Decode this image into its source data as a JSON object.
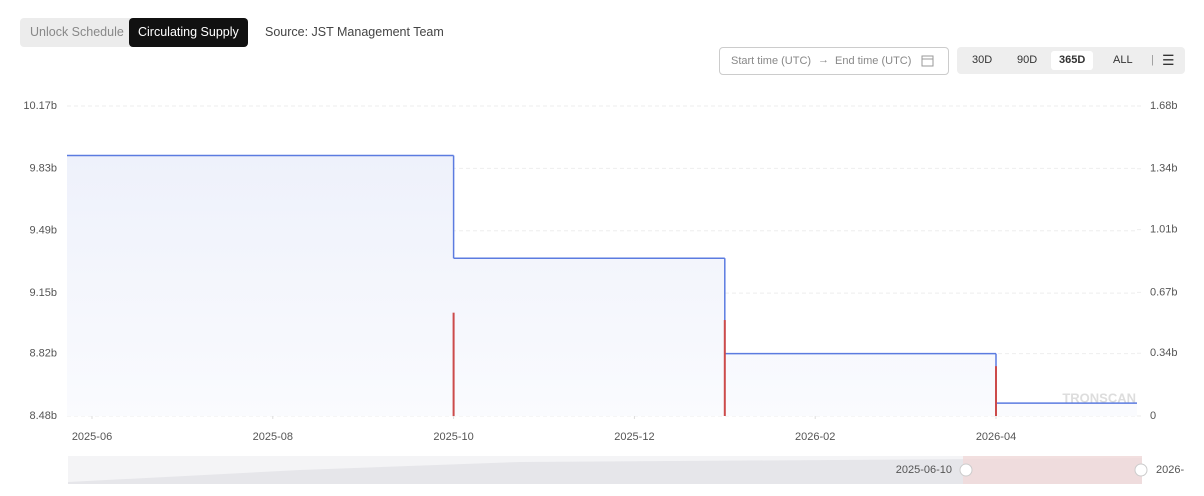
{
  "ui": {
    "tabs": [
      "Unlock Schedule",
      "Circulating Supply"
    ],
    "source": "Source: JST Management Team",
    "start_time": "Start time (UTC)",
    "end_time": "End time (UTC)",
    "ranges": [
      "30D",
      "90D",
      "365D",
      "ALL"
    ],
    "watermark": "TRONSCAN",
    "slider_start": "2025-06-10",
    "slider_end": "2026-"
  },
  "chart_data": {
    "type": "line",
    "xticks": [
      "2025-06",
      "2025-08",
      "2025-10",
      "2025-12",
      "2026-02",
      "2026-04"
    ],
    "ylim": [
      8.48,
      10.17
    ],
    "yticks": [
      {
        "value": 8.48,
        "label": "8.48b"
      },
      {
        "value": 8.82,
        "label": "8.82b"
      },
      {
        "value": 9.15,
        "label": "9.15b"
      },
      {
        "value": 9.49,
        "label": "9.49b"
      },
      {
        "value": 9.83,
        "label": "9.83b"
      },
      {
        "value": 10.17,
        "label": "10.17b"
      }
    ],
    "y2lim": [
      0,
      1.68
    ],
    "y2ticks": [
      0,
      {
        "value": 0.34,
        "label": "0.34b"
      },
      {
        "value": 0.67,
        "label": "0.67b"
      },
      {
        "value": 1.01,
        "label": "1.01b"
      },
      {
        "value": 1.34,
        "label": "1.34b"
      },
      {
        "value": 1.68,
        "label": "1.68b"
      }
    ],
    "grid": true,
    "series": [
      {
        "type": "line",
        "color": "#5b7be0",
        "x": [
          "2025-06",
          "2025-10",
          "2026-01",
          "2026-04"
        ],
        "values": [
          9.9,
          9.34,
          8.82,
          8.55
        ]
      },
      {
        "type": "bar",
        "axis": "y2",
        "color": "#cc4b4b",
        "x": [
          "2025-10",
          "2026-01",
          "2026-04"
        ],
        "values": [
          0.56,
          0.52,
          0.27
        ]
      }
    ]
  }
}
